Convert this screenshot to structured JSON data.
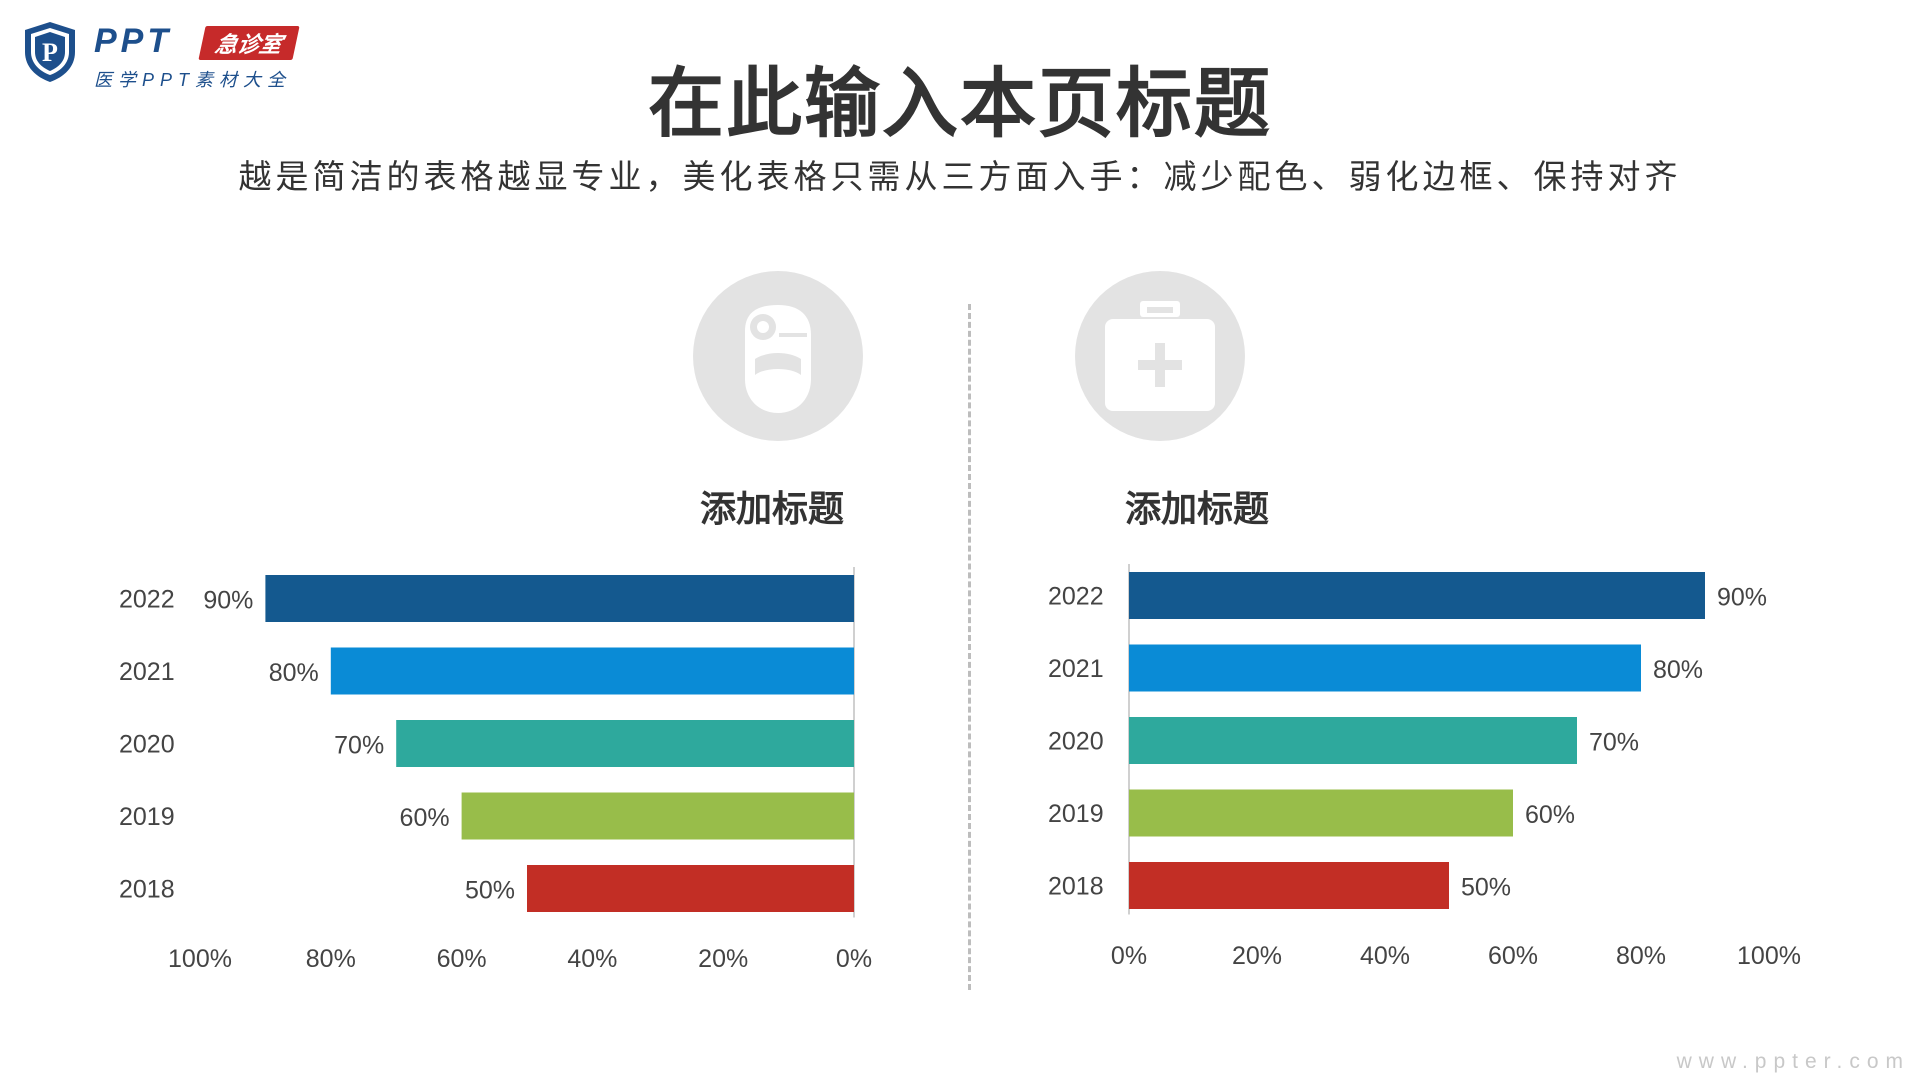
{
  "logo": {
    "brand": "PPT",
    "badge": "急诊室",
    "subtitle": "医学PPT素材大全",
    "shield_letter": "P"
  },
  "header": {
    "title": "在此输入本页标题",
    "subtitle": "越是简洁的表格越显专业，美化表格只需从三方面入手：减少配色、弱化边框、保持对齐"
  },
  "panels": [
    {
      "title": "添加标题",
      "icon": "doctor-head-mirror-icon"
    },
    {
      "title": "添加标题",
      "icon": "first-aid-kit-icon"
    }
  ],
  "colors": {
    "2022": "#14598f",
    "2021": "#0a8bd6",
    "2020": "#2ea99d",
    "2019": "#98bd4a",
    "2018": "#c22e25",
    "icon_bg": "#e3e3e3",
    "icon_fg": "#ffffff"
  },
  "chart_data": [
    {
      "type": "bar",
      "orientation": "horizontal",
      "x_reversed": true,
      "categories": [
        "2022",
        "2021",
        "2020",
        "2019",
        "2018"
      ],
      "values": [
        90,
        80,
        70,
        60,
        50
      ],
      "data_labels": [
        "90%",
        "80%",
        "70%",
        "60%",
        "50%"
      ],
      "xlim": [
        0,
        100
      ],
      "x_ticks": [
        "0%",
        "20%",
        "40%",
        "60%",
        "80%",
        "100%"
      ],
      "grid": false
    },
    {
      "type": "bar",
      "orientation": "horizontal",
      "x_reversed": false,
      "categories": [
        "2022",
        "2021",
        "2020",
        "2019",
        "2018"
      ],
      "values": [
        90,
        80,
        70,
        60,
        50
      ],
      "data_labels": [
        "90%",
        "80%",
        "70%",
        "60%",
        "50%"
      ],
      "xlim": [
        0,
        100
      ],
      "x_ticks": [
        "0%",
        "20%",
        "40%",
        "60%",
        "80%",
        "100%"
      ],
      "grid": false
    }
  ],
  "footer": {
    "watermark": "www.ppter.com"
  }
}
